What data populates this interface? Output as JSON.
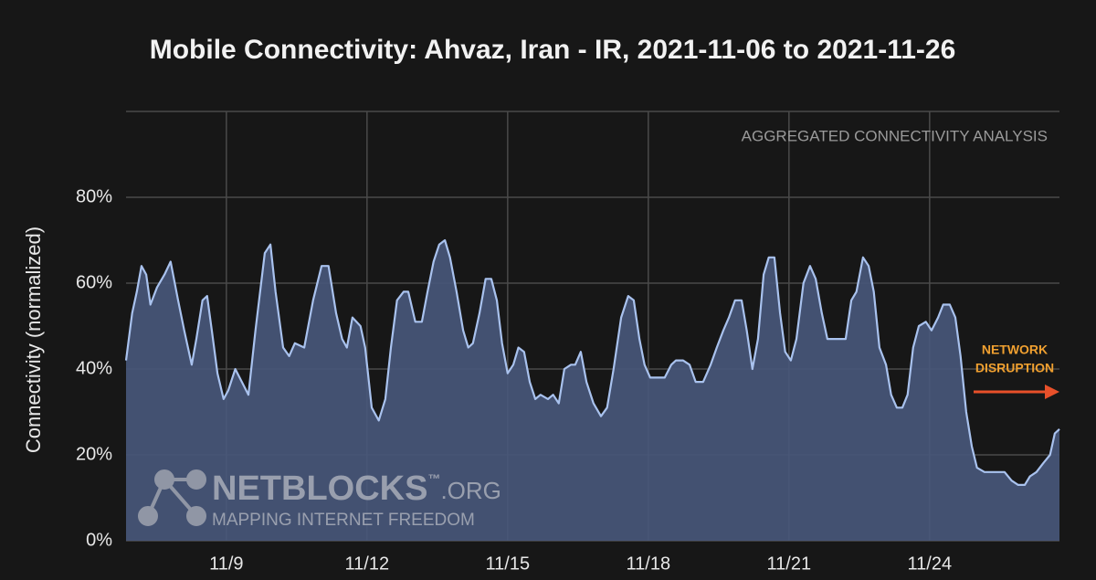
{
  "chart_data": {
    "type": "area",
    "title": "Mobile Connectivity: Ahvaz, Iran - IR, 2021-11-06 to 2021-11-26",
    "y_label": "Connectivity (normalized)",
    "annotation": "AGGREGATED CONNECTIVITY ANALYSIS",
    "disruption_label": [
      "NETWORK",
      "DISRUPTION"
    ],
    "disruption_color": "#f0a030",
    "arrow_color": "#e8502a",
    "watermark": {
      "name": "NETBLOCKS",
      "tm": "™",
      "suffix": ".ORG",
      "tagline": "MAPPING INTERNET FREEDOM"
    },
    "grid": true,
    "xlim": [
      6.86,
      26.77
    ],
    "xticks": [
      {
        "value": 9,
        "label": "11/9"
      },
      {
        "value": 12,
        "label": "11/12"
      },
      {
        "value": 15,
        "label": "11/15"
      },
      {
        "value": 18,
        "label": "11/18"
      },
      {
        "value": 21,
        "label": "11/21"
      },
      {
        "value": 24,
        "label": "11/24"
      }
    ],
    "ylim": [
      0,
      100
    ],
    "yticks": [
      {
        "value": 0,
        "label": "0%"
      },
      {
        "value": 20,
        "label": "20%"
      },
      {
        "value": 40,
        "label": "40%"
      },
      {
        "value": 60,
        "label": "60%"
      },
      {
        "value": 80,
        "label": "80%"
      }
    ],
    "x": [
      6.86,
      6.99,
      7.09,
      7.19,
      7.29,
      7.38,
      7.52,
      7.68,
      7.81,
      7.97,
      8.1,
      8.26,
      8.36,
      8.49,
      8.59,
      8.69,
      8.81,
      8.94,
      9.04,
      9.19,
      9.33,
      9.47,
      9.62,
      9.82,
      9.94,
      10.05,
      10.21,
      10.34,
      10.46,
      10.66,
      10.85,
      11.03,
      11.18,
      11.34,
      11.47,
      11.57,
      11.69,
      11.86,
      11.96,
      12.1,
      12.25,
      12.39,
      12.51,
      12.64,
      12.78,
      12.88,
      13.03,
      13.17,
      13.29,
      13.42,
      13.54,
      13.66,
      13.77,
      13.91,
      14.05,
      14.16,
      14.26,
      14.4,
      14.53,
      14.65,
      14.77,
      14.88,
      15.0,
      15.12,
      15.23,
      15.35,
      15.47,
      15.59,
      15.7,
      15.86,
      15.97,
      16.09,
      16.21,
      16.35,
      16.44,
      16.56,
      16.68,
      16.83,
      16.99,
      17.12,
      17.26,
      17.42,
      17.57,
      17.69,
      17.81,
      17.92,
      18.04,
      18.2,
      18.35,
      18.49,
      18.59,
      18.74,
      18.88,
      19.01,
      19.17,
      19.33,
      19.46,
      19.6,
      19.72,
      19.85,
      19.99,
      20.1,
      20.22,
      20.34,
      20.46,
      20.57,
      20.69,
      20.81,
      20.92,
      21.04,
      21.16,
      21.31,
      21.45,
      21.57,
      21.7,
      21.82,
      21.96,
      22.09,
      22.21,
      22.33,
      22.44,
      22.58,
      22.7,
      22.81,
      22.93,
      23.07,
      23.18,
      23.3,
      23.42,
      23.53,
      23.65,
      23.77,
      23.92,
      24.04,
      24.18,
      24.29,
      24.43,
      24.55,
      24.66,
      24.78,
      24.9,
      25.01,
      25.17,
      25.33,
      25.48,
      25.6,
      25.75,
      25.89,
      26.03,
      26.14,
      26.28,
      26.42,
      26.57,
      26.67,
      26.77
    ],
    "series": [
      {
        "name": "Connectivity",
        "color": "#a9c2ee",
        "fill": "#48577a",
        "values": [
          42,
          53,
          58,
          64,
          62,
          55,
          59,
          62,
          65,
          56,
          49,
          41,
          47,
          56,
          57,
          49,
          39,
          33,
          35,
          40,
          37,
          34,
          49,
          67,
          69,
          58,
          45,
          43,
          46,
          45,
          56,
          64,
          64,
          53,
          47,
          45,
          52,
          50,
          45,
          31,
          28,
          33,
          45,
          56,
          58,
          58,
          51,
          51,
          58,
          65,
          69,
          70,
          66,
          58,
          49,
          45,
          46,
          53,
          61,
          61,
          56,
          46,
          39,
          41,
          45,
          44,
          37,
          33,
          34,
          33,
          34,
          32,
          40,
          41,
          41,
          44,
          37,
          32,
          29,
          31,
          40,
          52,
          57,
          56,
          47,
          41,
          38,
          38,
          38,
          41,
          42,
          42,
          41,
          37,
          37,
          41,
          45,
          49,
          52,
          56,
          56,
          49,
          40,
          47,
          62,
          66,
          66,
          53,
          44,
          42,
          47,
          60,
          64,
          61,
          53,
          47,
          47,
          47,
          47,
          56,
          58,
          66,
          64,
          58,
          45,
          41,
          34,
          31,
          31,
          34,
          45,
          50,
          51,
          49,
          52,
          55,
          55,
          52,
          43,
          30,
          22,
          17,
          16,
          16,
          16,
          16,
          14,
          13,
          13,
          15,
          16,
          18,
          20,
          25,
          26
        ]
      }
    ]
  }
}
